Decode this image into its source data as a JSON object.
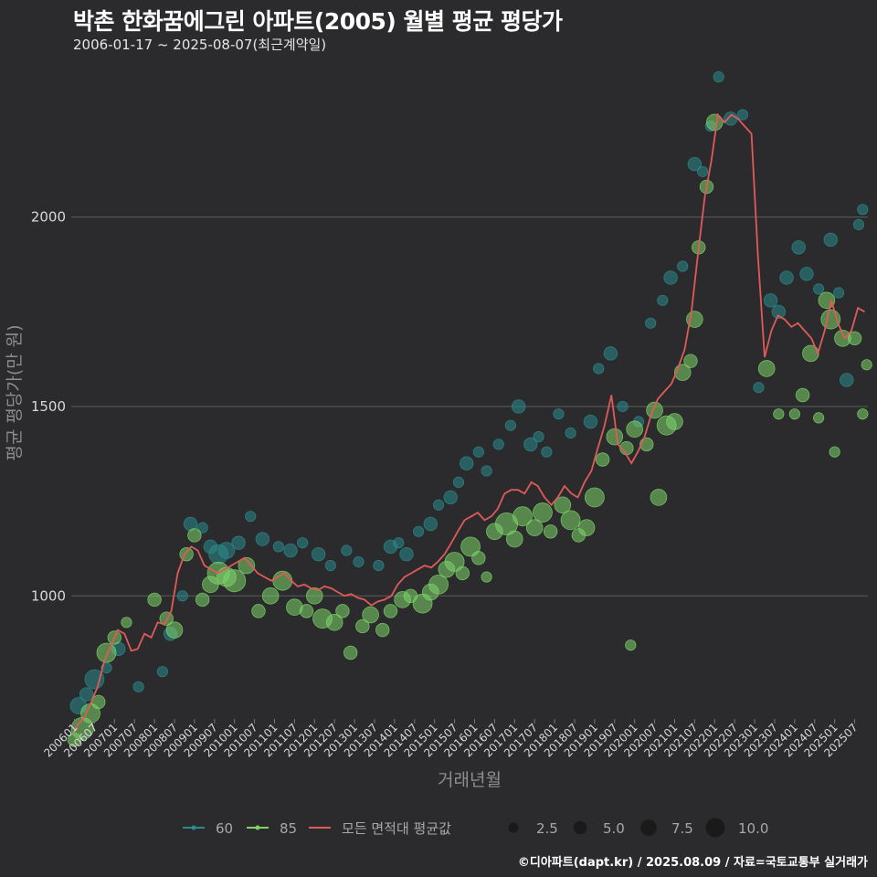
{
  "title": "박촌 한화꿈에그린 아파트(2005) 월별 평균 평당가",
  "subtitle": "2006-01-17 ~ 2025-08-07(최근계약일)",
  "footer": "©디아파트(dapt.kr) / 2025.08.09 / 자료=국토교통부 실거래가",
  "colors": {
    "background": "#2b2b2d",
    "grid": "#5c5c5c",
    "series_60": "#2a8a8c",
    "series_85": "#7ed36a",
    "average_line": "#e05a5a"
  },
  "chart_data": {
    "type": "scatter",
    "title": "박촌 한화꿈에그린 아파트(2005) 월별 평균 평당가",
    "xlabel": "거래년월",
    "ylabel": "평균 평당가(만 원)",
    "ylim": [
      680,
      2380
    ],
    "yticks": [
      1000,
      1500,
      2000
    ],
    "xticks": [
      "200601",
      "200607",
      "200701",
      "200707",
      "200801",
      "200807",
      "200901",
      "200907",
      "201001",
      "201007",
      "201101",
      "201107",
      "201201",
      "201207",
      "201301",
      "201307",
      "201401",
      "201407",
      "201501",
      "201507",
      "201601",
      "201607",
      "201701",
      "201707",
      "201801",
      "201807",
      "201901",
      "201907",
      "202001",
      "202007",
      "202101",
      "202107",
      "202201",
      "202207",
      "202301",
      "202307",
      "202401",
      "202407",
      "202501",
      "202507"
    ],
    "legend": {
      "series": [
        {
          "name": "60",
          "color": "#2a8a8c"
        },
        {
          "name": "85",
          "color": "#7ed36a"
        },
        {
          "name": "모든 면적대 평균값",
          "color": "#e05a5a"
        }
      ],
      "size_title": "",
      "sizes": [
        2.5,
        5.0,
        7.5,
        10.0
      ]
    },
    "average_line": [
      [
        2006.0,
        640
      ],
      [
        2006.08,
        660
      ],
      [
        2006.25,
        680
      ],
      [
        2006.42,
        720
      ],
      [
        2006.58,
        760
      ],
      [
        2006.75,
        830
      ],
      [
        2006.92,
        870
      ],
      [
        2007.08,
        910
      ],
      [
        2007.25,
        900
      ],
      [
        2007.42,
        855
      ],
      [
        2007.58,
        860
      ],
      [
        2007.75,
        900
      ],
      [
        2007.92,
        890
      ],
      [
        2008.08,
        930
      ],
      [
        2008.25,
        925
      ],
      [
        2008.42,
        960
      ],
      [
        2008.58,
        1060
      ],
      [
        2008.75,
        1110
      ],
      [
        2008.92,
        1130
      ],
      [
        2009.08,
        1120
      ],
      [
        2009.25,
        1080
      ],
      [
        2009.42,
        1070
      ],
      [
        2009.58,
        1060
      ],
      [
        2009.75,
        1070
      ],
      [
        2009.92,
        1080
      ],
      [
        2010.08,
        1090
      ],
      [
        2010.25,
        1100
      ],
      [
        2010.42,
        1080
      ],
      [
        2010.58,
        1060
      ],
      [
        2010.75,
        1050
      ],
      [
        2010.92,
        1040
      ],
      [
        2011.08,
        1050
      ],
      [
        2011.25,
        1060
      ],
      [
        2011.42,
        1040
      ],
      [
        2011.58,
        1025
      ],
      [
        2011.75,
        1030
      ],
      [
        2011.92,
        1020
      ],
      [
        2012.08,
        1015
      ],
      [
        2012.25,
        1025
      ],
      [
        2012.42,
        1020
      ],
      [
        2012.58,
        1010
      ],
      [
        2012.75,
        1000
      ],
      [
        2012.92,
        1005
      ],
      [
        2013.08,
        995
      ],
      [
        2013.25,
        990
      ],
      [
        2013.42,
        975
      ],
      [
        2013.58,
        985
      ],
      [
        2013.75,
        990
      ],
      [
        2013.92,
        1000
      ],
      [
        2014.08,
        1030
      ],
      [
        2014.25,
        1050
      ],
      [
        2014.42,
        1060
      ],
      [
        2014.58,
        1070
      ],
      [
        2014.75,
        1080
      ],
      [
        2014.92,
        1075
      ],
      [
        2015.08,
        1090
      ],
      [
        2015.25,
        1110
      ],
      [
        2015.42,
        1140
      ],
      [
        2015.58,
        1170
      ],
      [
        2015.75,
        1200
      ],
      [
        2015.92,
        1210
      ],
      [
        2016.08,
        1220
      ],
      [
        2016.25,
        1200
      ],
      [
        2016.42,
        1210
      ],
      [
        2016.58,
        1230
      ],
      [
        2016.75,
        1270
      ],
      [
        2016.92,
        1280
      ],
      [
        2017.08,
        1280
      ],
      [
        2017.25,
        1270
      ],
      [
        2017.42,
        1300
      ],
      [
        2017.58,
        1290
      ],
      [
        2017.75,
        1260
      ],
      [
        2017.92,
        1240
      ],
      [
        2018.08,
        1260
      ],
      [
        2018.25,
        1290
      ],
      [
        2018.42,
        1270
      ],
      [
        2018.58,
        1260
      ],
      [
        2018.75,
        1300
      ],
      [
        2018.92,
        1330
      ],
      [
        2019.08,
        1390
      ],
      [
        2019.25,
        1450
      ],
      [
        2019.42,
        1530
      ],
      [
        2019.58,
        1400
      ],
      [
        2019.75,
        1380
      ],
      [
        2019.92,
        1350
      ],
      [
        2020.08,
        1380
      ],
      [
        2020.25,
        1420
      ],
      [
        2020.42,
        1480
      ],
      [
        2020.58,
        1520
      ],
      [
        2020.75,
        1540
      ],
      [
        2020.92,
        1560
      ],
      [
        2021.08,
        1600
      ],
      [
        2021.25,
        1650
      ],
      [
        2021.42,
        1750
      ],
      [
        2021.58,
        1900
      ],
      [
        2021.75,
        2050
      ],
      [
        2021.92,
        2150
      ],
      [
        2022.08,
        2270
      ],
      [
        2022.25,
        2250
      ],
      [
        2022.42,
        2270
      ],
      [
        2022.58,
        2260
      ],
      [
        2022.75,
        2240
      ],
      [
        2022.92,
        2220
      ],
      [
        2023.08,
        1900
      ],
      [
        2023.25,
        1630
      ],
      [
        2023.42,
        1700
      ],
      [
        2023.58,
        1740
      ],
      [
        2023.75,
        1730
      ],
      [
        2023.92,
        1710
      ],
      [
        2024.08,
        1720
      ],
      [
        2024.25,
        1700
      ],
      [
        2024.42,
        1680
      ],
      [
        2024.58,
        1640
      ],
      [
        2024.75,
        1700
      ],
      [
        2024.92,
        1780
      ],
      [
        2025.08,
        1720
      ],
      [
        2025.25,
        1680
      ],
      [
        2025.42,
        1700
      ],
      [
        2025.58,
        1760
      ],
      [
        2025.75,
        1750
      ]
    ],
    "series": [
      {
        "name": "60",
        "points": [
          [
            2006.1,
            710,
            4
          ],
          [
            2006.3,
            740,
            3
          ],
          [
            2006.5,
            780,
            5
          ],
          [
            2006.8,
            810,
            2
          ],
          [
            2007.1,
            860,
            3
          ],
          [
            2007.6,
            760,
            2
          ],
          [
            2008.2,
            800,
            2
          ],
          [
            2008.4,
            900,
            3
          ],
          [
            2008.7,
            1000,
            2
          ],
          [
            2008.9,
            1190,
            3
          ],
          [
            2009.2,
            1180,
            2
          ],
          [
            2009.4,
            1130,
            3
          ],
          [
            2009.6,
            1110,
            5
          ],
          [
            2009.8,
            1120,
            4
          ],
          [
            2010.1,
            1140,
            3
          ],
          [
            2010.4,
            1210,
            2
          ],
          [
            2010.7,
            1150,
            3
          ],
          [
            2011.1,
            1130,
            2
          ],
          [
            2011.4,
            1120,
            3
          ],
          [
            2011.7,
            1140,
            2
          ],
          [
            2012.1,
            1110,
            3
          ],
          [
            2012.4,
            1080,
            2
          ],
          [
            2012.8,
            1120,
            2
          ],
          [
            2013.1,
            1090,
            2
          ],
          [
            2013.6,
            1080,
            2
          ],
          [
            2013.9,
            1130,
            3
          ],
          [
            2014.1,
            1140,
            2
          ],
          [
            2014.3,
            1110,
            3
          ],
          [
            2014.6,
            1170,
            2
          ],
          [
            2014.9,
            1190,
            3
          ],
          [
            2015.1,
            1240,
            2
          ],
          [
            2015.4,
            1260,
            3
          ],
          [
            2015.6,
            1300,
            2
          ],
          [
            2015.8,
            1350,
            3
          ],
          [
            2016.1,
            1380,
            2
          ],
          [
            2016.3,
            1330,
            2
          ],
          [
            2016.6,
            1400,
            2
          ],
          [
            2016.9,
            1450,
            2
          ],
          [
            2017.1,
            1500,
            3
          ],
          [
            2017.4,
            1400,
            3
          ],
          [
            2017.6,
            1420,
            2
          ],
          [
            2017.8,
            1380,
            2
          ],
          [
            2018.1,
            1480,
            2
          ],
          [
            2018.4,
            1430,
            2
          ],
          [
            2018.9,
            1460,
            3
          ],
          [
            2019.1,
            1600,
            2
          ],
          [
            2019.4,
            1640,
            3
          ],
          [
            2019.7,
            1500,
            2
          ],
          [
            2020.1,
            1460,
            2
          ],
          [
            2020.4,
            1720,
            2
          ],
          [
            2020.7,
            1780,
            2
          ],
          [
            2020.9,
            1840,
            3
          ],
          [
            2021.2,
            1870,
            2
          ],
          [
            2021.5,
            2140,
            3
          ],
          [
            2021.7,
            2120,
            2
          ],
          [
            2021.9,
            2240,
            2
          ],
          [
            2022.1,
            2370,
            2
          ],
          [
            2022.4,
            2260,
            3
          ],
          [
            2022.7,
            2270,
            2
          ],
          [
            2023.1,
            1550,
            2
          ],
          [
            2023.4,
            1780,
            3
          ],
          [
            2023.6,
            1750,
            3
          ],
          [
            2023.8,
            1840,
            3
          ],
          [
            2024.1,
            1920,
            3
          ],
          [
            2024.3,
            1850,
            3
          ],
          [
            2024.6,
            1810,
            2
          ],
          [
            2024.9,
            1940,
            3
          ],
          [
            2025.1,
            1800,
            2
          ],
          [
            2025.3,
            1570,
            3
          ],
          [
            2025.6,
            1980,
            2
          ],
          [
            2025.7,
            2020,
            2
          ]
        ]
      },
      {
        "name": "85",
        "points": [
          [
            2006.0,
            620,
            3
          ],
          [
            2006.2,
            650,
            6
          ],
          [
            2006.4,
            690,
            5
          ],
          [
            2006.6,
            720,
            3
          ],
          [
            2006.8,
            850,
            5
          ],
          [
            2007.0,
            890,
            3
          ],
          [
            2007.3,
            930,
            2
          ],
          [
            2008.0,
            990,
            3
          ],
          [
            2008.3,
            940,
            3
          ],
          [
            2008.5,
            910,
            4
          ],
          [
            2008.8,
            1110,
            3
          ],
          [
            2009.0,
            1160,
            3
          ],
          [
            2009.2,
            990,
            3
          ],
          [
            2009.4,
            1030,
            4
          ],
          [
            2009.6,
            1060,
            6
          ],
          [
            2009.8,
            1050,
            5
          ],
          [
            2010.0,
            1040,
            6
          ],
          [
            2010.3,
            1080,
            4
          ],
          [
            2010.6,
            960,
            3
          ],
          [
            2010.9,
            1000,
            4
          ],
          [
            2011.2,
            1040,
            5
          ],
          [
            2011.5,
            970,
            4
          ],
          [
            2011.8,
            960,
            3
          ],
          [
            2012.0,
            1000,
            4
          ],
          [
            2012.2,
            940,
            5
          ],
          [
            2012.5,
            930,
            4
          ],
          [
            2012.7,
            960,
            3
          ],
          [
            2012.9,
            850,
            3
          ],
          [
            2013.2,
            920,
            3
          ],
          [
            2013.4,
            950,
            4
          ],
          [
            2013.7,
            910,
            3
          ],
          [
            2013.9,
            960,
            3
          ],
          [
            2014.2,
            990,
            4
          ],
          [
            2014.4,
            1000,
            3
          ],
          [
            2014.7,
            980,
            5
          ],
          [
            2014.9,
            1010,
            4
          ],
          [
            2015.1,
            1030,
            5
          ],
          [
            2015.3,
            1070,
            4
          ],
          [
            2015.5,
            1090,
            5
          ],
          [
            2015.7,
            1060,
            3
          ],
          [
            2015.9,
            1130,
            5
          ],
          [
            2016.1,
            1100,
            3
          ],
          [
            2016.3,
            1050,
            2
          ],
          [
            2016.5,
            1170,
            4
          ],
          [
            2016.8,
            1190,
            6
          ],
          [
            2017.0,
            1150,
            4
          ],
          [
            2017.2,
            1210,
            5
          ],
          [
            2017.5,
            1180,
            4
          ],
          [
            2017.7,
            1220,
            5
          ],
          [
            2017.9,
            1170,
            3
          ],
          [
            2018.2,
            1240,
            4
          ],
          [
            2018.4,
            1200,
            5
          ],
          [
            2018.6,
            1160,
            3
          ],
          [
            2018.8,
            1180,
            4
          ],
          [
            2019.0,
            1260,
            5
          ],
          [
            2019.2,
            1360,
            3
          ],
          [
            2019.5,
            1420,
            4
          ],
          [
            2019.8,
            1390,
            3
          ],
          [
            2020.0,
            1440,
            4
          ],
          [
            2020.3,
            1400,
            3
          ],
          [
            2020.5,
            1490,
            4
          ],
          [
            2020.6,
            1260,
            4
          ],
          [
            2020.8,
            1450,
            5
          ],
          [
            2021.0,
            1460,
            4
          ],
          [
            2021.2,
            1590,
            4
          ],
          [
            2021.4,
            1620,
            3
          ],
          [
            2021.5,
            1730,
            4
          ],
          [
            2021.6,
            1920,
            3
          ],
          [
            2021.8,
            2080,
            3
          ],
          [
            2022.0,
            2250,
            4
          ],
          [
            2023.3,
            1600,
            4
          ],
          [
            2023.6,
            1480,
            2
          ],
          [
            2024.0,
            1480,
            2
          ],
          [
            2024.2,
            1530,
            3
          ],
          [
            2024.4,
            1640,
            4
          ],
          [
            2024.6,
            1470,
            2
          ],
          [
            2024.8,
            1780,
            4
          ],
          [
            2024.9,
            1730,
            5
          ],
          [
            2025.0,
            1380,
            2
          ],
          [
            2025.2,
            1680,
            4
          ],
          [
            2025.5,
            1680,
            3
          ],
          [
            2025.7,
            1480,
            2
          ],
          [
            2025.8,
            1610,
            2
          ],
          [
            2019.9,
            870,
            2
          ]
        ]
      }
    ]
  }
}
